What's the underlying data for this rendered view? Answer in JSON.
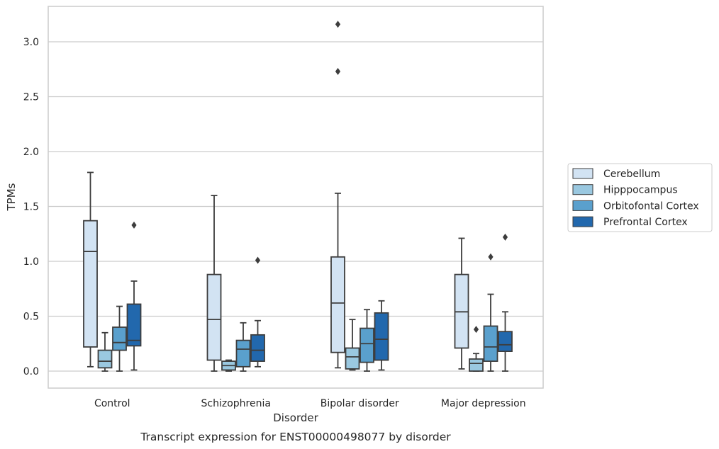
{
  "caption": "Transcript expression for ENST00000498077 by disorder",
  "chart_data": {
    "type": "box",
    "xlabel": "Disorder",
    "ylabel": "TPMs",
    "ylim": [
      -0.15,
      3.32
    ],
    "yticks": [
      "0.0",
      "0.5",
      "1.0",
      "1.5",
      "2.0",
      "2.5",
      "3.0"
    ],
    "grid": "horizontal",
    "legend_position": "right",
    "categories": [
      "Control",
      "Schizophrenia",
      "Bipolar disorder",
      "Major depression"
    ],
    "series": [
      {
        "name": "Cerebellum",
        "color": "#d2e3f3",
        "boxes": [
          {
            "whisker_low": 0.04,
            "q1": 0.22,
            "median": 1.09,
            "q3": 1.37,
            "whisker_high": 1.81,
            "outliers": []
          },
          {
            "whisker_low": 0.0,
            "q1": 0.1,
            "median": 0.47,
            "q3": 0.88,
            "whisker_high": 1.6,
            "outliers": []
          },
          {
            "whisker_low": 0.03,
            "q1": 0.17,
            "median": 0.62,
            "q3": 1.04,
            "whisker_high": 1.62,
            "outliers": [
              2.73,
              3.16
            ]
          },
          {
            "whisker_low": 0.02,
            "q1": 0.21,
            "median": 0.54,
            "q3": 0.88,
            "whisker_high": 1.21,
            "outliers": []
          }
        ]
      },
      {
        "name": "Hipppocampus",
        "color": "#9ac8e0",
        "boxes": [
          {
            "whisker_low": 0.0,
            "q1": 0.03,
            "median": 0.09,
            "q3": 0.19,
            "whisker_high": 0.35,
            "outliers": []
          },
          {
            "whisker_low": 0.0,
            "q1": 0.01,
            "median": 0.05,
            "q3": 0.09,
            "whisker_high": 0.1,
            "outliers": []
          },
          {
            "whisker_low": 0.01,
            "q1": 0.02,
            "median": 0.13,
            "q3": 0.21,
            "whisker_high": 0.47,
            "outliers": []
          },
          {
            "whisker_low": 0.0,
            "q1": 0.0,
            "median": 0.07,
            "q3": 0.11,
            "whisker_high": 0.16,
            "outliers": [
              0.38
            ]
          }
        ]
      },
      {
        "name": "Orbitofontal Cortex",
        "color": "#5aa0cd",
        "boxes": [
          {
            "whisker_low": 0.0,
            "q1": 0.19,
            "median": 0.26,
            "q3": 0.4,
            "whisker_high": 0.59,
            "outliers": []
          },
          {
            "whisker_low": 0.0,
            "q1": 0.04,
            "median": 0.2,
            "q3": 0.28,
            "whisker_high": 0.44,
            "outliers": []
          },
          {
            "whisker_low": 0.0,
            "q1": 0.08,
            "median": 0.25,
            "q3": 0.39,
            "whisker_high": 0.56,
            "outliers": []
          },
          {
            "whisker_low": 0.0,
            "q1": 0.09,
            "median": 0.22,
            "q3": 0.41,
            "whisker_high": 0.7,
            "outliers": [
              1.04
            ]
          }
        ]
      },
      {
        "name": "Prefrontal Cortex",
        "color": "#2268ad",
        "boxes": [
          {
            "whisker_low": 0.01,
            "q1": 0.23,
            "median": 0.28,
            "q3": 0.61,
            "whisker_high": 0.82,
            "outliers": [
              1.33
            ]
          },
          {
            "whisker_low": 0.04,
            "q1": 0.09,
            "median": 0.19,
            "q3": 0.33,
            "whisker_high": 0.46,
            "outliers": [
              1.01
            ]
          },
          {
            "whisker_low": 0.01,
            "q1": 0.1,
            "median": 0.29,
            "q3": 0.53,
            "whisker_high": 0.64,
            "outliers": []
          },
          {
            "whisker_low": 0.0,
            "q1": 0.18,
            "median": 0.24,
            "q3": 0.36,
            "whisker_high": 0.54,
            "outliers": [
              1.22
            ]
          }
        ]
      }
    ]
  }
}
